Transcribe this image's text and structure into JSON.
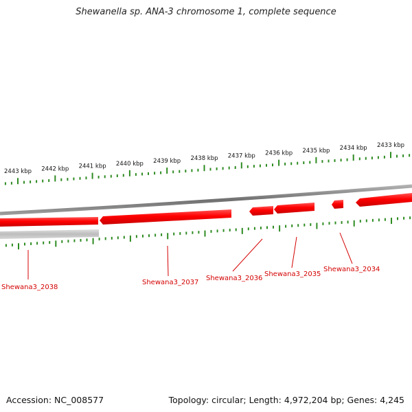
{
  "title": "Shewanella sp. ANA-3 chromosome 1, complete sequence",
  "scale": {
    "labels": [
      "2443 kbp",
      "2442 kbp",
      "2441 kbp",
      "2440 kbp",
      "2439 kbp",
      "2438 kbp",
      "2437 kbp",
      "2436 kbp",
      "2435 kbp",
      "2434 kbp",
      "2433 kbp"
    ]
  },
  "genes": [
    {
      "label": "Shewana3_2038"
    },
    {
      "label": "Shewana3_2037"
    },
    {
      "label": "Shewana3_2036"
    },
    {
      "label": "Shewana3_2035"
    },
    {
      "label": "Shewana3_2034"
    }
  ],
  "colors": {
    "gene": "#ff0000",
    "tick": "#2e8b22",
    "backbone": "#8a8a8a",
    "label": "#d40000"
  },
  "footer": {
    "accession": "Accession: NC_008577",
    "topology": "Topology: circular; Length: 4,972,204 bp; Genes: 4,245"
  }
}
